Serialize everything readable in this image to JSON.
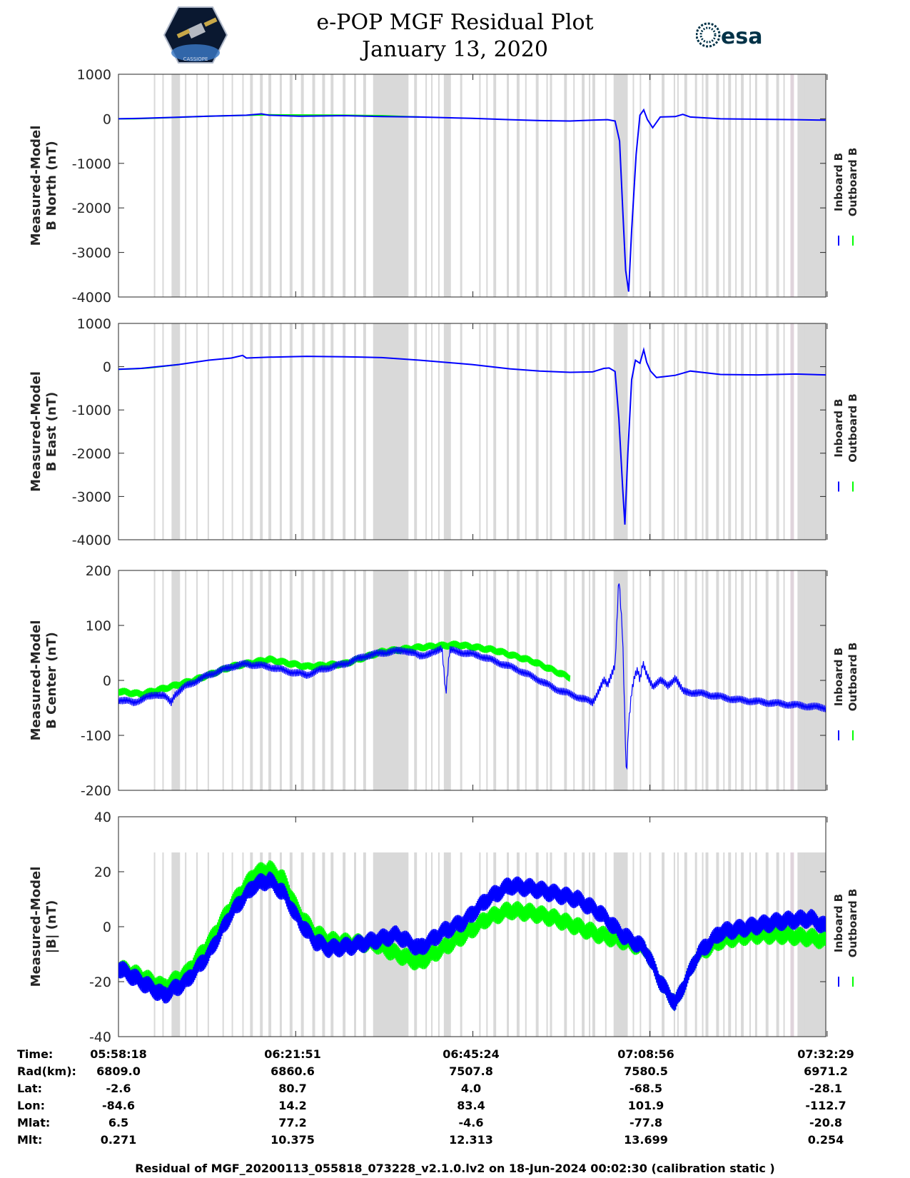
{
  "header": {
    "title": "e-POP MGF Residual Plot",
    "date": "January 13, 2020",
    "logo_left_text": "CASSIOPE",
    "logo_right_text": "esa"
  },
  "legend": {
    "inboard": "Inboard B",
    "outboard": "Outboard B"
  },
  "colors": {
    "inboard": "#0000ff",
    "outboard": "#00ff00",
    "shade": "#d9d9d9",
    "shade_alt": "#e0d4dc"
  },
  "time_table": {
    "labels": [
      "Time:",
      "Rad(km):",
      "Lat:",
      "Lon:",
      "Mlat:",
      "Mlt:"
    ],
    "columns": [
      [
        "05:58:18",
        "6809.0",
        "-2.6",
        "-84.6",
        "6.5",
        "0.271"
      ],
      [
        "06:21:51",
        "6860.6",
        "80.7",
        "14.2",
        "77.2",
        "10.375"
      ],
      [
        "06:45:24",
        "7507.8",
        "4.0",
        "83.4",
        "-4.6",
        "12.313"
      ],
      [
        "07:08:56",
        "7580.5",
        "-68.5",
        "101.9",
        "-77.8",
        "13.699"
      ],
      [
        "07:32:29",
        "6971.2",
        "-28.1",
        "-112.7",
        "-20.8",
        "0.254"
      ]
    ]
  },
  "footer": "Residual of MGF_20200113_055818_073228_v2.1.0.lv2 on 18-Jun-2024 00:02:30 (calibration static )",
  "chart_data": [
    {
      "type": "line",
      "ylabel": [
        "Measured-Model",
        "B North (nT)"
      ],
      "ylim": [
        -4000,
        1000
      ],
      "yticks": [
        "1000",
        "0",
        "-1000",
        "-2000",
        "-3000",
        "-4000"
      ],
      "xlim": [
        0,
        94
      ],
      "xticks": [
        0,
        23.55,
        47.1,
        70.63,
        94.18
      ],
      "series": [
        {
          "name": "Inboard B",
          "x": [
            0,
            3,
            7,
            12,
            17,
            19,
            20,
            24,
            30,
            35,
            40,
            47,
            52,
            56,
            60,
            63,
            65,
            66,
            66.6,
            67,
            67.4,
            67.8,
            68.2,
            68.8,
            69.3,
            69.8,
            70.3,
            71,
            72,
            74,
            75,
            76,
            80,
            85,
            90,
            94
          ],
          "y": [
            0,
            10,
            30,
            60,
            80,
            110,
            80,
            60,
            70,
            50,
            40,
            10,
            -20,
            -40,
            -50,
            -30,
            -20,
            -50,
            -500,
            -2000,
            -3400,
            -3880,
            -2500,
            -800,
            80,
            200,
            -20,
            -200,
            40,
            50,
            100,
            40,
            0,
            -10,
            -20,
            -30
          ]
        },
        {
          "name": "Outboard B",
          "x": [
            0,
            2,
            4,
            12,
            20,
            30,
            35,
            38,
            40
          ],
          "y": [
            0,
            0,
            10,
            60,
            90,
            80,
            70,
            50,
            40
          ]
        }
      ]
    },
    {
      "type": "line",
      "ylabel": [
        "Measured-Model",
        "B East (nT)"
      ],
      "ylim": [
        -4000,
        1000
      ],
      "yticks": [
        "1000",
        "0",
        "-1000",
        "-2000",
        "-3000",
        "-4000"
      ],
      "xlim": [
        0,
        94
      ],
      "xticks": [
        0,
        23.55,
        47.1,
        70.63,
        94.18
      ],
      "series": [
        {
          "name": "Inboard B",
          "x": [
            0,
            3,
            8,
            12,
            15,
            16.5,
            17,
            20,
            25,
            30,
            35,
            40,
            47,
            52,
            56,
            60,
            63,
            64.5,
            65.2,
            66,
            66.5,
            67,
            67.3,
            67.7,
            68.2,
            68.7,
            69.3,
            69.8,
            70.2,
            70.7,
            71.5,
            74,
            75,
            76,
            80,
            85,
            90,
            94
          ],
          "y": [
            -60,
            -40,
            50,
            150,
            200,
            260,
            200,
            220,
            240,
            230,
            210,
            150,
            50,
            -50,
            -100,
            -130,
            -120,
            -40,
            -30,
            -110,
            -1200,
            -2800,
            -3650,
            -2000,
            -300,
            150,
            80,
            390,
            100,
            -100,
            -250,
            -200,
            -150,
            -100,
            -180,
            -190,
            -170,
            -190
          ]
        },
        {
          "name": "Outboard B",
          "x": [
            0,
            2,
            4,
            8
          ],
          "y": [
            -60,
            -50,
            -30,
            50
          ]
        }
      ]
    },
    {
      "type": "line",
      "ylabel": [
        "Measured-Model",
        "B Center (nT)"
      ],
      "ylim": [
        -200,
        200
      ],
      "yticks": [
        "200",
        "100",
        "0",
        "-100",
        "-200"
      ],
      "xlim": [
        0,
        94
      ],
      "xticks": [
        0,
        23.55,
        47.1,
        70.63,
        94.18
      ],
      "series": [
        {
          "name": "Inboard B",
          "x": [
            0,
            2,
            4,
            5,
            6,
            7,
            7.5,
            9,
            12,
            15,
            17,
            20,
            23,
            25,
            27,
            30,
            33,
            35,
            38,
            40,
            42,
            43,
            43.5,
            44,
            46,
            48,
            50,
            53,
            56,
            58,
            60,
            62,
            63,
            64.5,
            65,
            66,
            66.5,
            67,
            67.5,
            67.8,
            68.2,
            68.6,
            69,
            69.3,
            69.7,
            70.2,
            71,
            72,
            73,
            74,
            75,
            78,
            82,
            86,
            90,
            94
          ],
          "y": [
            -35,
            -40,
            -30,
            -25,
            -28,
            -40,
            -25,
            -10,
            10,
            25,
            30,
            25,
            15,
            10,
            20,
            30,
            45,
            50,
            55,
            45,
            50,
            60,
            -25,
            55,
            50,
            45,
            35,
            20,
            0,
            -15,
            -25,
            -35,
            -40,
            0,
            -10,
            30,
            190,
            80,
            -180,
            -80,
            -20,
            10,
            20,
            0,
            30,
            10,
            -10,
            0,
            -10,
            5,
            -20,
            -25,
            -35,
            -40,
            -45,
            -50
          ]
        },
        {
          "name": "Outboard B",
          "x": [
            0,
            3,
            6,
            10,
            15,
            20,
            25,
            30,
            35,
            40,
            45,
            50,
            55,
            60
          ],
          "y": [
            -20,
            -25,
            -15,
            0,
            25,
            38,
            25,
            30,
            52,
            60,
            65,
            55,
            35,
            5
          ]
        }
      ]
    },
    {
      "type": "line",
      "ylabel": [
        "Measured-Model",
        "|B| (nT)"
      ],
      "ylim": [
        -40,
        40
      ],
      "yticks": [
        "40",
        "20",
        "0",
        "-20",
        "-40"
      ],
      "xlim": [
        0,
        94
      ],
      "xticks": [
        0,
        23.55,
        47.1,
        70.63,
        94.18
      ],
      "series": [
        {
          "name": "Inboard B",
          "x": [
            0,
            3,
            6,
            9,
            12,
            15,
            18,
            20,
            22,
            24,
            26,
            28,
            31,
            34,
            37,
            40,
            43,
            46,
            49,
            52,
            55,
            58,
            61,
            64,
            67,
            70,
            72,
            74,
            75,
            77,
            80,
            84,
            88,
            92,
            94
          ],
          "y": [
            -15,
            -20,
            -25,
            -20,
            -10,
            5,
            15,
            17,
            12,
            2,
            -5,
            -8,
            -7,
            -5,
            -3,
            -8,
            -2,
            2,
            10,
            15,
            14,
            12,
            10,
            5,
            -3,
            -8,
            -20,
            -28,
            -22,
            -10,
            -2,
            0,
            2,
            3,
            0
          ]
        },
        {
          "name": "Outboard B",
          "x": [
            0,
            3,
            6,
            9,
            12,
            15,
            18,
            20,
            22,
            24,
            26,
            28,
            31,
            34,
            37,
            40,
            43,
            46,
            49,
            52,
            55,
            58,
            61,
            64,
            67,
            70,
            72,
            74,
            75,
            77,
            80,
            84,
            88,
            92,
            94
          ],
          "y": [
            -15,
            -18,
            -22,
            -17,
            -6,
            8,
            19,
            21,
            17,
            5,
            -2,
            -5,
            -6,
            -6,
            -10,
            -13,
            -8,
            -3,
            3,
            6,
            5,
            3,
            0,
            -3,
            -5,
            -8,
            -20,
            -28,
            -22,
            -10,
            -5,
            -3,
            -3,
            -4,
            -5
          ]
        }
      ]
    }
  ]
}
